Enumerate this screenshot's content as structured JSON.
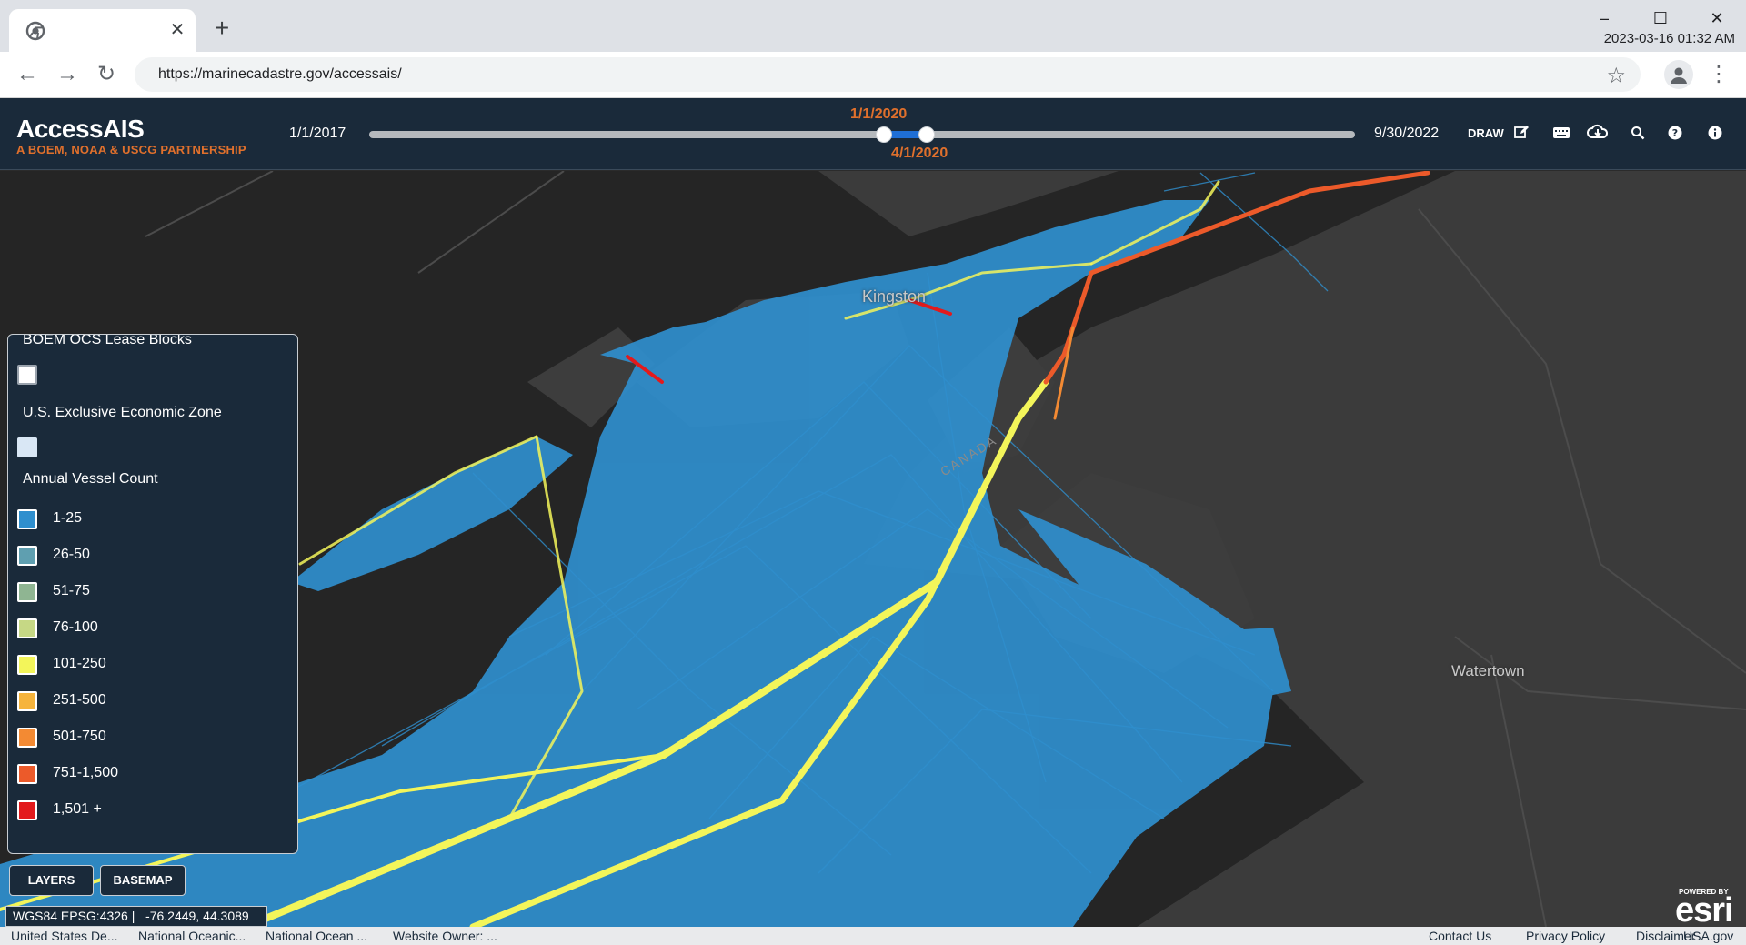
{
  "browser": {
    "tab_close": "✕",
    "new_tab": "+",
    "minimize": "–",
    "maximize": "☐",
    "close": "✕",
    "datetime": "2023-03-16 01:32 AM",
    "url": "https://marinecadastre.gov/accessais/"
  },
  "header": {
    "title": "AccessAIS",
    "subtitle": "A BOEM, NOAA & USCG PARTNERSHIP",
    "date_start": "1/1/2017",
    "date_end": "9/30/2022",
    "range_start": "1/1/2020",
    "range_end": "4/1/2020",
    "draw_label": "DRAW"
  },
  "map": {
    "place_kingston": "Kingston",
    "place_watertown": "Watertown",
    "place_canada": "CANADA"
  },
  "legend": {
    "lease_blocks": "BOEM OCS Lease Blocks",
    "eez": "U.S. Exclusive Economic Zone",
    "vessel_count": "Annual Vessel Count",
    "items": [
      {
        "label": "1-25",
        "color": "#2f8fce"
      },
      {
        "label": "26-50",
        "color": "#5f9fb0"
      },
      {
        "label": "51-75",
        "color": "#8fb592"
      },
      {
        "label": "76-100",
        "color": "#c6d885"
      },
      {
        "label": "101-250",
        "color": "#f3f55a"
      },
      {
        "label": "251-500",
        "color": "#f6b43c"
      },
      {
        "label": "501-750",
        "color": "#f38a33"
      },
      {
        "label": "751-1,500",
        "color": "#ec5a2a"
      },
      {
        "label": "1,501 +",
        "color": "#e31a1c"
      }
    ]
  },
  "buttons": {
    "layers": "LAYERS",
    "basemap": "BASEMAP"
  },
  "coords": "WGS84 EPSG:4326 |   -76.2449, 44.3089",
  "esri": {
    "powered": "POWERED BY",
    "brand": "esri"
  },
  "footer": {
    "credits": [
      "United States De...",
      "National Oceanic...",
      "National Ocean ...",
      "Website Owner: ..."
    ],
    "links": [
      "Contact Us",
      "Privacy Policy",
      "Disclaimer",
      "USA.gov"
    ]
  }
}
